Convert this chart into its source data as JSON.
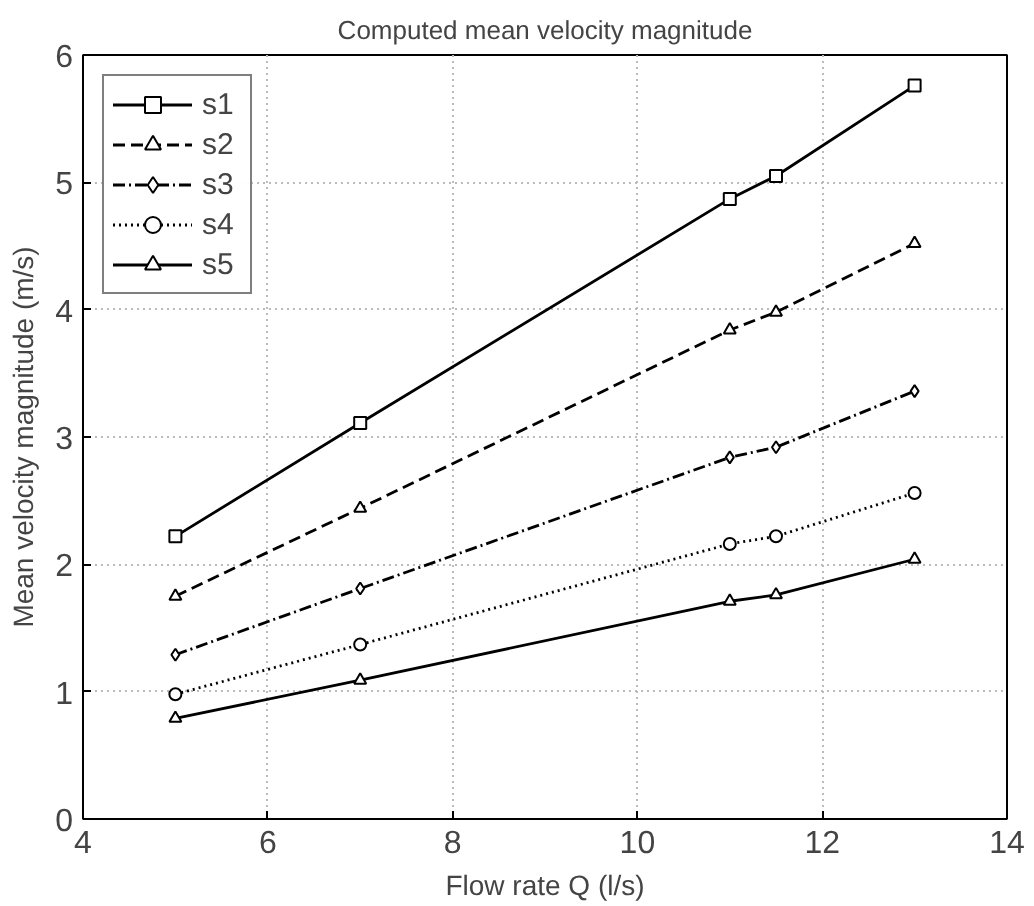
{
  "chart_data": {
    "type": "line",
    "title": "Computed mean velocity magnitude",
    "xlabel": "Flow rate Q (l/s)",
    "ylabel": "Mean velocity magnitude (m/s)",
    "x": [
      5,
      7,
      11,
      11.5,
      13
    ],
    "series": [
      {
        "name": "s1",
        "color": "#000000",
        "marker": "square",
        "line_style": "solid",
        "values": [
          2.22,
          3.11,
          4.87,
          5.05,
          5.76
        ]
      },
      {
        "name": "s2",
        "color": "#000000",
        "marker": "triangle",
        "line_style": "dashed",
        "values": [
          1.75,
          2.44,
          3.84,
          3.98,
          4.52
        ]
      },
      {
        "name": "s3",
        "color": "#000000",
        "marker": "diamond",
        "line_style": "dashdot",
        "values": [
          1.29,
          1.81,
          2.84,
          2.92,
          3.36
        ]
      },
      {
        "name": "s4",
        "color": "#000000",
        "marker": "circle",
        "line_style": "dotted",
        "values": [
          0.98,
          1.37,
          2.16,
          2.22,
          2.56
        ]
      },
      {
        "name": "s5",
        "color": "#000000",
        "marker": "triangle",
        "line_style": "solid",
        "values": [
          0.79,
          1.09,
          1.71,
          1.76,
          2.04
        ]
      }
    ],
    "xlim": [
      4,
      14
    ],
    "ylim": [
      0,
      6
    ],
    "xticks": [
      4,
      6,
      8,
      10,
      12,
      14
    ],
    "yticks": [
      0,
      1,
      2,
      3,
      4,
      5,
      6
    ],
    "grid": true,
    "legend": "top left"
  }
}
